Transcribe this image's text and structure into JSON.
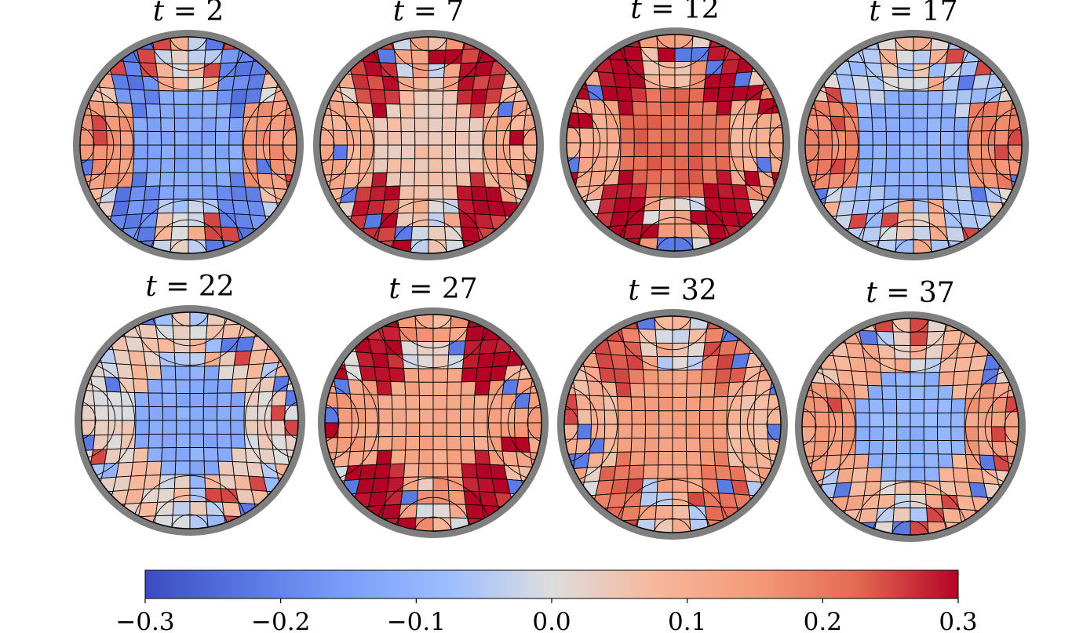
{
  "chart_data": {
    "type": "heatmap",
    "layout": "2 rows x 4 columns of circular mesh panels with a shared horizontal colorbar",
    "colormap": "coolwarm",
    "colors": {
      "low": "#3b4cc0",
      "mid": "#dddddd",
      "high": "#b40426",
      "ring": "#7f7f7f",
      "mesh_lines": "#000000"
    },
    "value_range": [
      -0.3,
      0.3
    ],
    "panels": [
      {
        "var": "t",
        "value": "2",
        "center": -0.13,
        "rim": 0.02,
        "stripe": -0.2,
        "side": 0.15,
        "accent": 0.25
      },
      {
        "var": "t",
        "value": "7",
        "center": 0.05,
        "rim": 0.06,
        "stripe": 0.28,
        "side": 0.1,
        "accent": 0.3
      },
      {
        "var": "t",
        "value": "12",
        "center": 0.22,
        "rim": 0.08,
        "stripe": 0.3,
        "side": 0.1,
        "accent": 0.3
      },
      {
        "var": "t",
        "value": "17",
        "center": -0.11,
        "rim": 0.02,
        "stripe": -0.05,
        "side": 0.18,
        "accent": 0.25
      },
      {
        "var": "t",
        "value": "22",
        "center": -0.12,
        "rim": 0.0,
        "stripe": 0.05,
        "side": 0.02,
        "accent": 0.25
      },
      {
        "var": "t",
        "value": "27",
        "center": 0.12,
        "rim": 0.08,
        "stripe": 0.3,
        "side": 0.13,
        "accent": 0.3
      },
      {
        "var": "t",
        "value": "32",
        "center": 0.14,
        "rim": 0.05,
        "stripe": 0.22,
        "side": 0.08,
        "accent": 0.25
      },
      {
        "var": "t",
        "value": "37",
        "center": -0.1,
        "rim": 0.04,
        "stripe": 0.1,
        "side": 0.14,
        "accent": 0.25
      }
    ],
    "colorbar": {
      "ticks": [
        {
          "value": -0.3,
          "label": "−0.3"
        },
        {
          "value": -0.2,
          "label": "−0.2"
        },
        {
          "value": -0.1,
          "label": "−0.1"
        },
        {
          "value": 0.0,
          "label": "0.0"
        },
        {
          "value": 0.1,
          "label": "0.1"
        },
        {
          "value": 0.2,
          "label": "0.2"
        },
        {
          "value": 0.3,
          "label": "0.3"
        }
      ]
    }
  }
}
